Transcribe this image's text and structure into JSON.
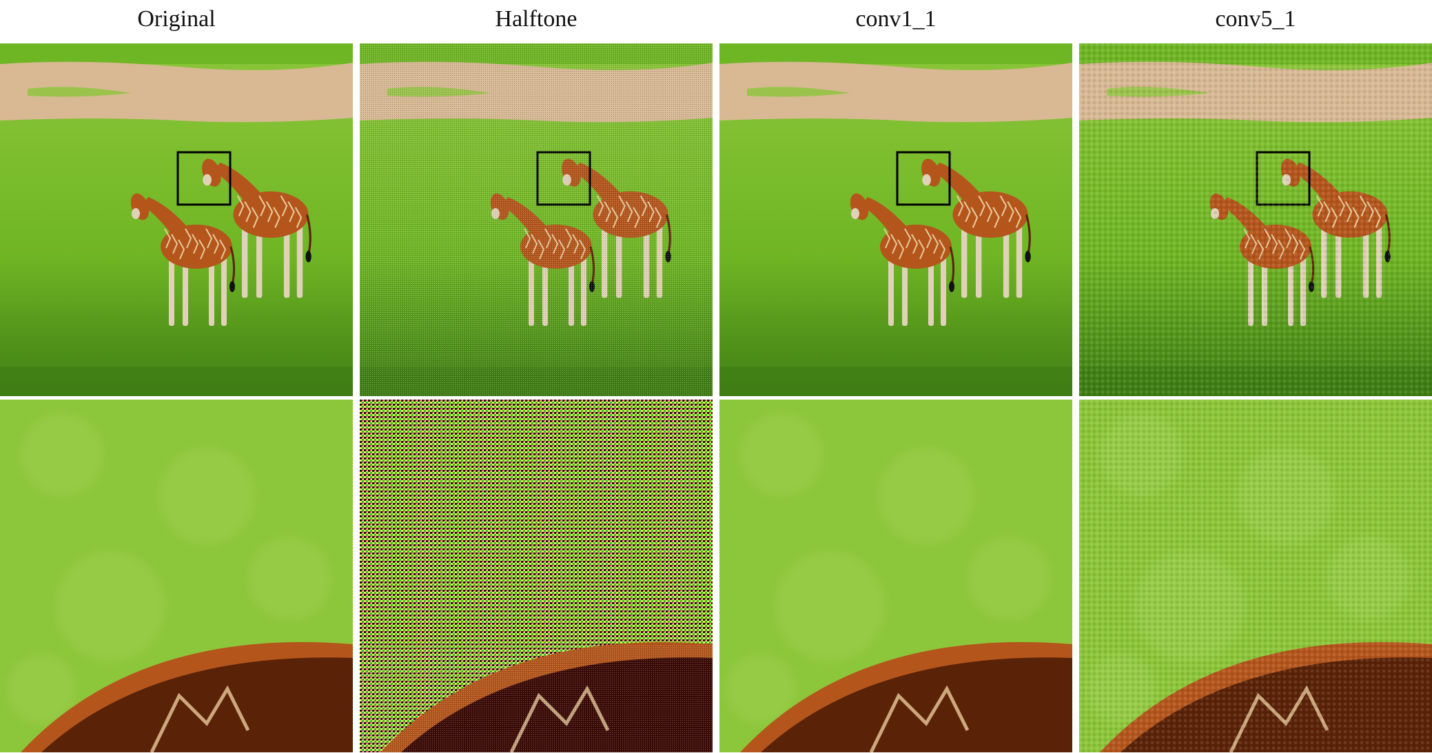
{
  "columns": [
    {
      "title": "Original",
      "style": "smooth"
    },
    {
      "title": "Halftone",
      "style": "halftone"
    },
    {
      "title": "conv1_1",
      "style": "smooth"
    },
    {
      "title": "conv5_1",
      "style": "checker"
    }
  ],
  "rows": [
    {
      "content": "two giraffes on green grass with dirt path; black square marks zoom region"
    },
    {
      "content": "zoomed crop of grass with giraffe back at bottom"
    }
  ],
  "colors": {
    "grass": "#6fb624",
    "grass_light": "#8cc63a",
    "grass_dark": "#3f7d14",
    "dirt": "#d8b994",
    "dirt_dark": "#c7a27c",
    "giraffe": "#b4561c",
    "giraffe_dark": "#5a2308",
    "giraffe_patch_line": "#e8c99a",
    "leg": "#e0d2b8",
    "box": "#000000"
  }
}
